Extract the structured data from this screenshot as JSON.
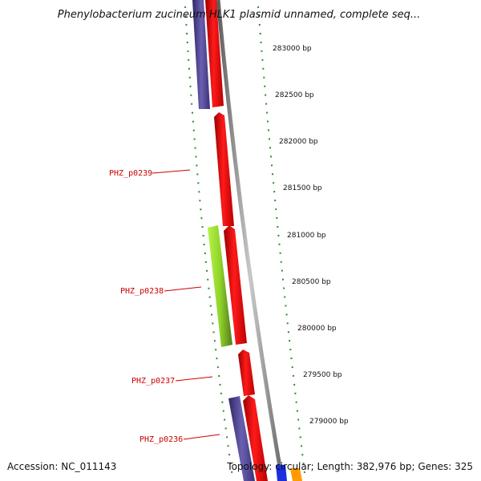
{
  "title": "Phenylobacterium zucineum HLK1 plasmid unnamed, complete seq...",
  "footer": {
    "accession": "Accession: NC_011143",
    "summary": "Topology: circular; Length: 382,976 bp; Genes: 325"
  },
  "colors": {
    "forward_gene": "#ee0000",
    "reverse_gene": "#4a3f8c",
    "highlight_gene": "#9be23a",
    "backbone": "#8a8a8a",
    "ticks": "#2e8b2e",
    "label_line": "#cc0000",
    "blue_gene": "#1a2ee0",
    "orange_gene": "#ff9a00"
  },
  "chart_data": {
    "type": "genome-map",
    "ticks": [
      "283000 bp",
      "282500 bp",
      "282000 bp",
      "281500 bp",
      "281000 bp",
      "280500 bp",
      "280000 bp",
      "279500 bp",
      "279000 bp"
    ],
    "gene_labels": [
      "PHZ_p0239",
      "PHZ_p0238",
      "PHZ_p0237",
      "PHZ_p0236"
    ]
  }
}
